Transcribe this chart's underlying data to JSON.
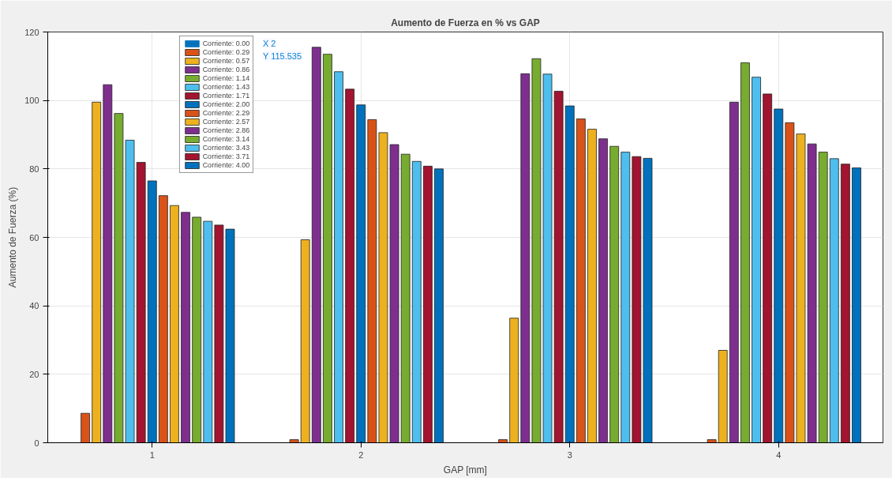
{
  "chart_data": {
    "type": "bar",
    "title": "Aumento de Fuerza en % vs GAP",
    "xlabel": "GAP [mm]",
    "ylabel": "Aumento de Fuerza (%)",
    "categories": [
      "1",
      "2",
      "3",
      "4"
    ],
    "series": [
      {
        "name": "Corriente: 0.00",
        "color": "#0072bd",
        "values": [
          0,
          0,
          0,
          0
        ]
      },
      {
        "name": "Corriente: 0.29",
        "color": "#d95319",
        "values": [
          8.6,
          0.9,
          0.9,
          0.9
        ]
      },
      {
        "name": "Corriente: 0.57",
        "color": "#edb120",
        "values": [
          99.5,
          59.3,
          36.4,
          27.0
        ]
      },
      {
        "name": "Corriente: 0.86",
        "color": "#7e2f8e",
        "values": [
          104.6,
          115.535,
          107.8,
          99.5
        ]
      },
      {
        "name": "Corriente: 1.14",
        "color": "#77ac30",
        "values": [
          96.2,
          113.5,
          112.2,
          111.0
        ]
      },
      {
        "name": "Corriente: 1.43",
        "color": "#4dbeee",
        "values": [
          88.4,
          108.4,
          107.7,
          106.8
        ]
      },
      {
        "name": "Corriente: 1.71",
        "color": "#a2142f",
        "values": [
          81.9,
          103.3,
          102.7,
          101.9
        ]
      },
      {
        "name": "Corriente: 2.00",
        "color": "#0072bd",
        "values": [
          76.5,
          98.7,
          98.4,
          97.5
        ]
      },
      {
        "name": "Corriente: 2.29",
        "color": "#d95319",
        "values": [
          72.2,
          94.4,
          94.6,
          93.5
        ]
      },
      {
        "name": "Corriente: 2.57",
        "color": "#edb120",
        "values": [
          69.3,
          90.6,
          91.6,
          90.2
        ]
      },
      {
        "name": "Corriente: 2.86",
        "color": "#7e2f8e",
        "values": [
          67.3,
          87.1,
          88.8,
          87.3
        ]
      },
      {
        "name": "Corriente: 3.14",
        "color": "#77ac30",
        "values": [
          65.9,
          84.3,
          86.6,
          84.9
        ]
      },
      {
        "name": "Corriente: 3.43",
        "color": "#4dbeee",
        "values": [
          64.7,
          82.2,
          84.9,
          83.0
        ]
      },
      {
        "name": "Corriente: 3.71",
        "color": "#a2142f",
        "values": [
          63.6,
          80.8,
          83.6,
          81.4
        ]
      },
      {
        "name": "Corriente: 4.00",
        "color": "#0072bd",
        "values": [
          62.4,
          80.0,
          83.1,
          80.3
        ]
      }
    ],
    "ylim": [
      0,
      120
    ],
    "yticks": [
      0,
      20,
      40,
      60,
      80,
      100,
      120
    ],
    "grid": true,
    "legend": "top left",
    "annotations": [
      "X 2",
      "Y 115.535"
    ]
  }
}
